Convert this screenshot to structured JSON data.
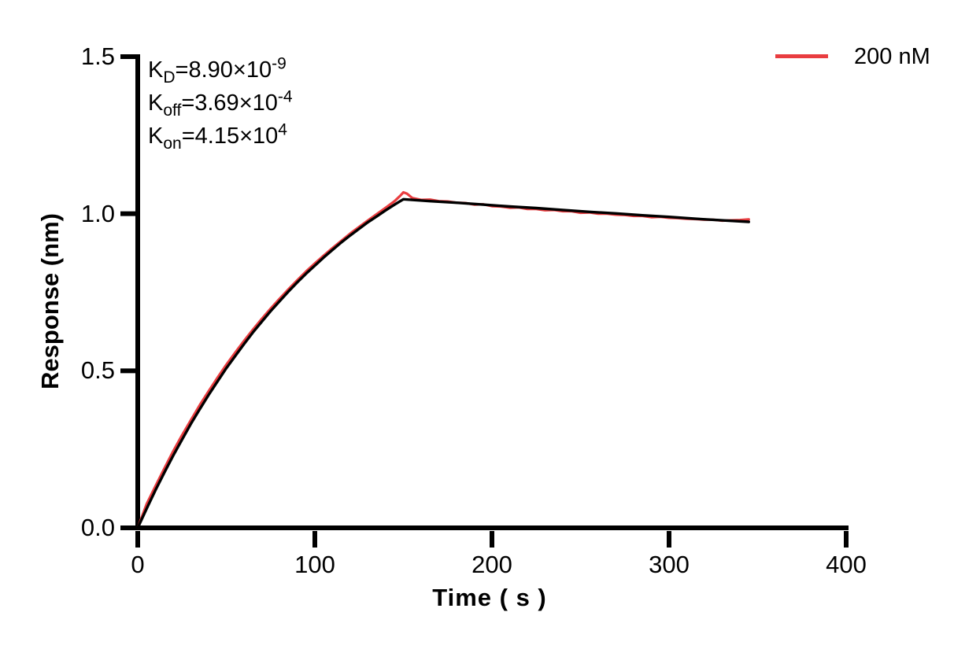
{
  "legend": {
    "label": "200 nM",
    "color": "#e93d40"
  },
  "kinetics": [
    {
      "k": "K",
      "sub": "D",
      "value": "=8.90×10",
      "exp": "-9"
    },
    {
      "k": "K",
      "sub": "off",
      "value": "=3.69×10",
      "exp": "-4"
    },
    {
      "k": "K",
      "sub": "on",
      "value": "=4.15×10",
      "exp": "4"
    }
  ],
  "chart_data": {
    "type": "line",
    "title": "",
    "xlabel": "Time ( s )",
    "ylabel": "Response (nm)",
    "xlim": [
      0,
      400
    ],
    "ylim": [
      0,
      1.5
    ],
    "x_ticks": [
      0,
      100,
      200,
      300,
      400
    ],
    "x_tick_labels": [
      "0",
      "100",
      "200",
      "300",
      "400"
    ],
    "y_ticks": [
      0,
      0.5,
      1,
      1.5
    ],
    "y_tick_labels": [
      "0.0",
      "0.5",
      "1.0",
      "1.5"
    ],
    "grid": false,
    "axis_color": "#000000",
    "legend_position": "top-right",
    "annotations": [
      "KD=8.90×10^-9",
      "Koff=3.69×10^-4",
      "Kon=4.15×10^4"
    ],
    "series": [
      {
        "key": "data",
        "name": "200 nM",
        "color": "#e93d40",
        "stroke_width": 3.2,
        "points": [
          [
            0,
            0.0
          ],
          [
            5,
            0.076
          ],
          [
            10,
            0.133
          ],
          [
            15,
            0.189
          ],
          [
            20,
            0.244
          ],
          [
            25,
            0.295
          ],
          [
            30,
            0.343
          ],
          [
            35,
            0.391
          ],
          [
            40,
            0.435
          ],
          [
            45,
            0.478
          ],
          [
            50,
            0.519
          ],
          [
            55,
            0.558
          ],
          [
            60,
            0.595
          ],
          [
            65,
            0.631
          ],
          [
            70,
            0.665
          ],
          [
            75,
            0.698
          ],
          [
            80,
            0.729
          ],
          [
            85,
            0.759
          ],
          [
            90,
            0.788
          ],
          [
            95,
            0.816
          ],
          [
            100,
            0.842
          ],
          [
            105,
            0.867
          ],
          [
            110,
            0.891
          ],
          [
            115,
            0.914
          ],
          [
            120,
            0.937
          ],
          [
            125,
            0.958
          ],
          [
            130,
            0.979
          ],
          [
            135,
            0.999
          ],
          [
            140,
            1.019
          ],
          [
            145,
            1.04
          ],
          [
            148,
            1.056
          ],
          [
            150,
            1.068
          ],
          [
            152,
            1.064
          ],
          [
            155,
            1.05
          ],
          [
            160,
            1.044
          ],
          [
            165,
            1.045
          ],
          [
            170,
            1.04
          ],
          [
            175,
            1.039
          ],
          [
            180,
            1.035
          ],
          [
            185,
            1.034
          ],
          [
            190,
            1.029
          ],
          [
            195,
            1.03
          ],
          [
            200,
            1.024
          ],
          [
            205,
            1.023
          ],
          [
            210,
            1.019
          ],
          [
            215,
            1.02
          ],
          [
            220,
            1.015
          ],
          [
            225,
            1.015
          ],
          [
            230,
            1.011
          ],
          [
            235,
            1.012
          ],
          [
            240,
            1.008
          ],
          [
            245,
            1.008
          ],
          [
            250,
            1.003
          ],
          [
            255,
            1.004
          ],
          [
            260,
            1.0
          ],
          [
            265,
            1.0
          ],
          [
            270,
            0.997
          ],
          [
            275,
            0.996
          ],
          [
            280,
            0.993
          ],
          [
            285,
            0.993
          ],
          [
            290,
            0.989
          ],
          [
            295,
            0.99
          ],
          [
            300,
            0.987
          ],
          [
            305,
            0.986
          ],
          [
            310,
            0.984
          ],
          [
            315,
            0.983
          ],
          [
            320,
            0.981
          ],
          [
            325,
            0.981
          ],
          [
            330,
            0.978
          ],
          [
            335,
            0.979
          ],
          [
            340,
            0.98
          ],
          [
            345,
            0.982
          ]
        ]
      },
      {
        "key": "fit",
        "name": "fit",
        "color": "#000000",
        "stroke_width": 3.4,
        "points": [
          [
            0,
            0.0
          ],
          [
            5,
            0.061
          ],
          [
            10,
            0.12
          ],
          [
            15,
            0.176
          ],
          [
            20,
            0.23
          ],
          [
            25,
            0.281
          ],
          [
            30,
            0.331
          ],
          [
            35,
            0.378
          ],
          [
            40,
            0.423
          ],
          [
            45,
            0.466
          ],
          [
            50,
            0.508
          ],
          [
            55,
            0.547
          ],
          [
            60,
            0.585
          ],
          [
            65,
            0.622
          ],
          [
            70,
            0.656
          ],
          [
            75,
            0.69
          ],
          [
            80,
            0.721
          ],
          [
            85,
            0.752
          ],
          [
            90,
            0.781
          ],
          [
            95,
            0.809
          ],
          [
            100,
            0.835
          ],
          [
            105,
            0.861
          ],
          [
            110,
            0.885
          ],
          [
            115,
            0.909
          ],
          [
            120,
            0.931
          ],
          [
            125,
            0.952
          ],
          [
            130,
            0.973
          ],
          [
            135,
            0.992
          ],
          [
            140,
            1.011
          ],
          [
            145,
            1.029
          ],
          [
            150,
            1.046
          ],
          [
            165,
            1.04
          ],
          [
            180,
            1.035
          ],
          [
            195,
            1.029
          ],
          [
            210,
            1.023
          ],
          [
            225,
            1.018
          ],
          [
            240,
            1.012
          ],
          [
            255,
            1.006
          ],
          [
            270,
            1.001
          ],
          [
            285,
            0.995
          ],
          [
            300,
            0.99
          ],
          [
            315,
            0.984
          ],
          [
            330,
            0.979
          ],
          [
            345,
            0.974
          ]
        ]
      }
    ]
  }
}
